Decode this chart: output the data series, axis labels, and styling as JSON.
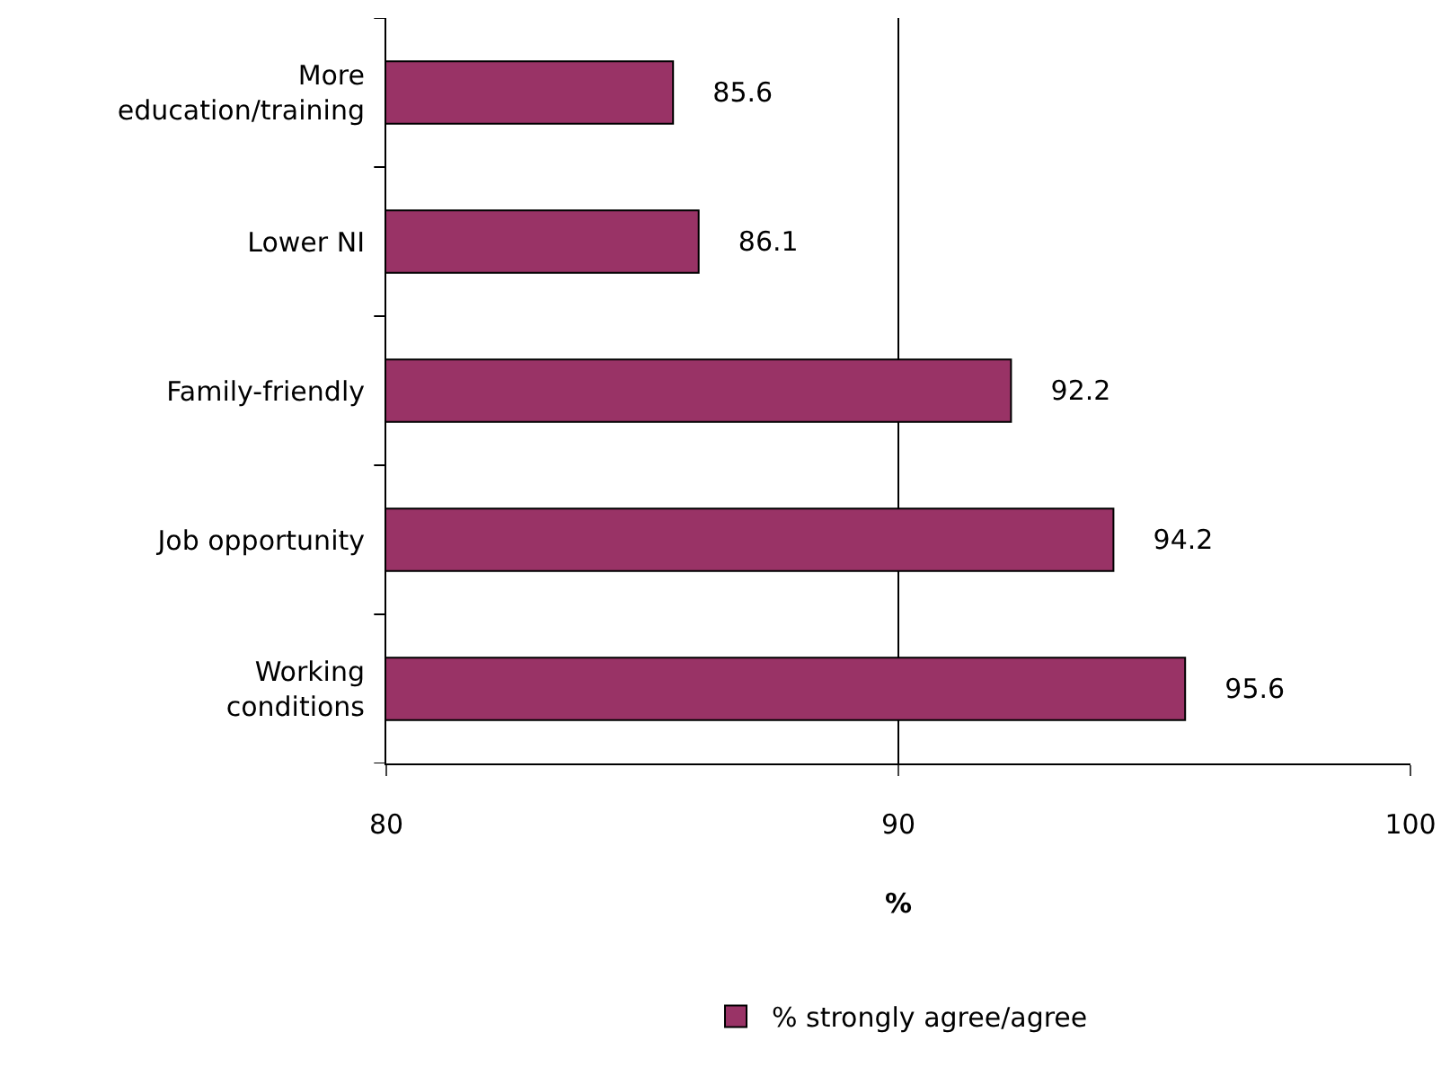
{
  "chart_data": {
    "type": "bar",
    "orientation": "horizontal",
    "xlabel": "%",
    "categories": [
      "More education/training",
      "Lower NI",
      "Family-friendly",
      "Job opportunity",
      "Working conditions"
    ],
    "series": [
      {
        "name": "% strongly agree/agree",
        "color": "#993366",
        "values": [
          85.6,
          86.1,
          92.2,
          94.2,
          95.6
        ]
      }
    ],
    "xlim": [
      80,
      100
    ],
    "xticks": [
      80,
      90,
      100
    ],
    "grid": "x",
    "legend": "bottom",
    "data_labels": true
  }
}
